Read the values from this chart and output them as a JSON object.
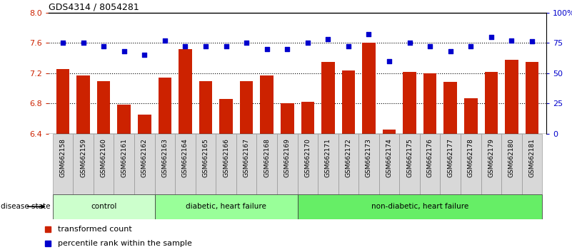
{
  "title": "GDS4314 / 8054281",
  "samples": [
    "GSM662158",
    "GSM662159",
    "GSM662160",
    "GSM662161",
    "GSM662162",
    "GSM662163",
    "GSM662164",
    "GSM662165",
    "GSM662166",
    "GSM662167",
    "GSM662168",
    "GSM662169",
    "GSM662170",
    "GSM662171",
    "GSM662172",
    "GSM662173",
    "GSM662174",
    "GSM662175",
    "GSM662176",
    "GSM662177",
    "GSM662178",
    "GSM662179",
    "GSM662180",
    "GSM662181"
  ],
  "bar_values": [
    7.25,
    7.17,
    7.09,
    6.78,
    6.65,
    7.14,
    7.52,
    7.09,
    6.86,
    7.09,
    7.17,
    6.8,
    6.82,
    7.35,
    7.23,
    7.6,
    6.45,
    7.22,
    7.2,
    7.08,
    6.87,
    7.22,
    7.38,
    7.35
  ],
  "dot_values": [
    75,
    75,
    72,
    68,
    65,
    77,
    72,
    72,
    72,
    75,
    70,
    70,
    75,
    78,
    72,
    82,
    60,
    75,
    72,
    68,
    72,
    80,
    77,
    76
  ],
  "bar_color": "#cc2200",
  "dot_color": "#0000cc",
  "ylim_left": [
    6.4,
    8.0
  ],
  "ylim_right": [
    0,
    100
  ],
  "yticks_left": [
    6.4,
    6.8,
    7.2,
    7.6,
    8.0
  ],
  "yticks_right": [
    0,
    25,
    50,
    75,
    100
  ],
  "yticklabels_right": [
    "0",
    "25",
    "50",
    "75",
    "100%"
  ],
  "groups": [
    {
      "label": "control",
      "start": 0,
      "end": 5,
      "color": "#ccffcc"
    },
    {
      "label": "diabetic, heart failure",
      "start": 5,
      "end": 12,
      "color": "#99ff99"
    },
    {
      "label": "non-diabetic, heart failure",
      "start": 12,
      "end": 24,
      "color": "#66ee66"
    }
  ],
  "disease_state_label": "disease state",
  "legend_bar_label": "transformed count",
  "legend_dot_label": "percentile rank within the sample",
  "xtick_bg_color": "#d8d8d8",
  "plot_bg_color": "#ffffff"
}
